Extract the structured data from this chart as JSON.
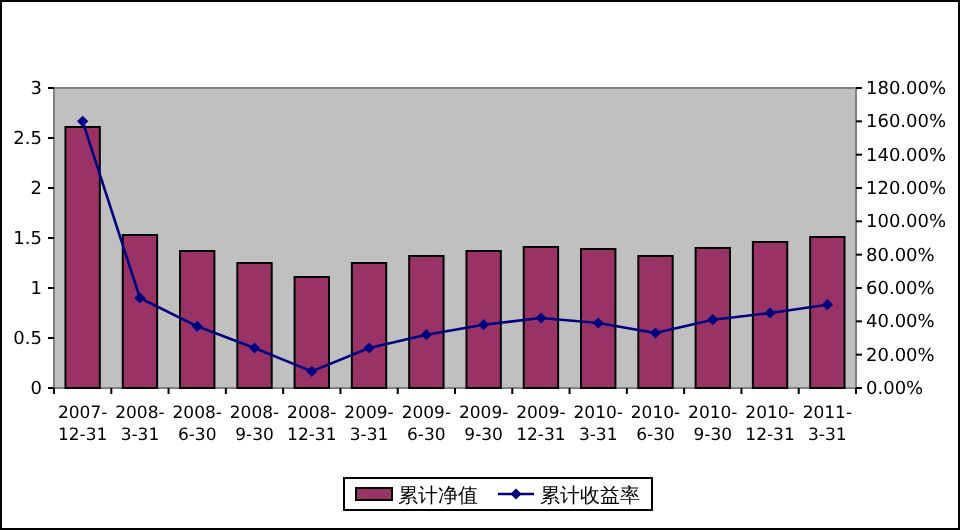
{
  "chart_data": {
    "type": "bar",
    "categories": [
      "2007-12-31",
      "2008-3-31",
      "2008-6-30",
      "2008-9-30",
      "2008-12-31",
      "2009-3-31",
      "2009-6-30",
      "2009-9-30",
      "2009-12-31",
      "2010-3-31",
      "2010-6-30",
      "2010-9-30",
      "2010-12-31",
      "2011-3-31"
    ],
    "series": [
      {
        "name": "累计净值",
        "color": "#993366",
        "values": [
          2.61,
          1.53,
          1.37,
          1.25,
          1.11,
          1.25,
          1.32,
          1.37,
          1.41,
          1.39,
          1.32,
          1.4,
          1.46,
          1.51
        ]
      },
      {
        "name": "累计收益率",
        "type": "line",
        "axis": "y2",
        "color": "#000080",
        "values": [
          160,
          54,
          37,
          24,
          10,
          24,
          32,
          38,
          42,
          39,
          33,
          41,
          45,
          50
        ]
      }
    ],
    "ylim": [
      0,
      3
    ],
    "yticks": [
      0,
      0.5,
      1,
      1.5,
      2,
      2.5,
      3
    ],
    "y2lim": [
      0,
      180
    ],
    "y2ticks": [
      {
        "value": 0,
        "label": "0.00%"
      },
      {
        "value": 20,
        "label": "20.00%"
      },
      {
        "value": 40,
        "label": "40.00%"
      },
      {
        "value": 60,
        "label": "60.00%"
      },
      {
        "value": 80,
        "label": "80.00%"
      },
      {
        "value": 100,
        "label": "100.00%"
      },
      {
        "value": 120,
        "label": "120.00%"
      },
      {
        "value": 140,
        "label": "140.00%"
      },
      {
        "value": 160,
        "label": "160.00%"
      },
      {
        "value": 180,
        "label": "180.00%"
      }
    ],
    "marker": "diamond",
    "grid": false,
    "legend": "bottom"
  }
}
